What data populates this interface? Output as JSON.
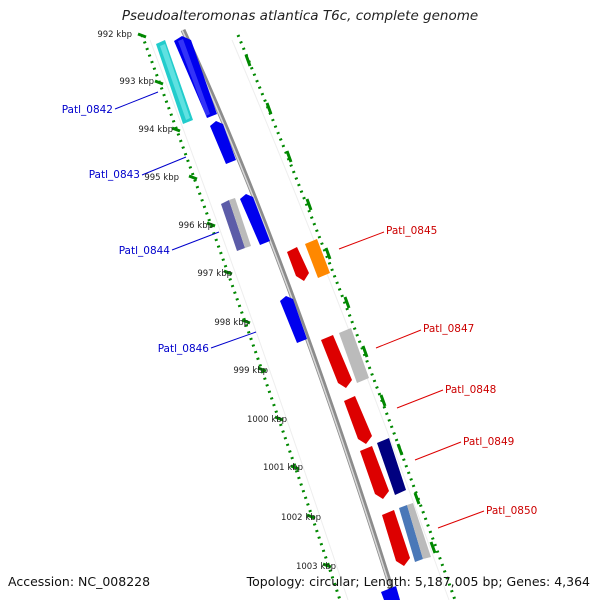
{
  "title": "Pseudoalteromonas atlantica T6c, complete genome",
  "footer": {
    "accession": "Accession: NC_008228",
    "summary": "Topology: circular; Length: 5,187,005 bp; Genes: 4,364"
  },
  "ticks": [
    "992 kbp",
    "993 kbp",
    "994 kbp",
    "995 kbp",
    "996 kbp",
    "997 kbp",
    "998 kbp",
    "999 kbp",
    "1000 kbp",
    "1001 kbp",
    "1002 kbp",
    "1003 kbp"
  ],
  "gene_labels": {
    "left": [
      "Patl_0842",
      "Patl_0843",
      "Patl_0844",
      "Patl_0846"
    ],
    "right": [
      "Patl_0845",
      "Patl_0847",
      "Patl_0848",
      "Patl_0849",
      "Patl_0850"
    ]
  },
  "colors": {
    "forward": "#0000ee",
    "reverse": "#dd0000",
    "cyan": "#22cccc",
    "orange": "#ff8800",
    "gray": "#bbbbbb",
    "navy": "#000080",
    "tick": "#008800",
    "backbone": "#888888"
  }
}
